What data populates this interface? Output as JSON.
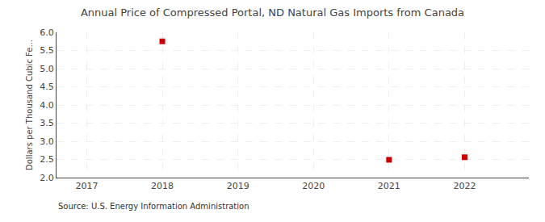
{
  "chart_data": {
    "type": "scatter",
    "title": "Annual Price of Compressed Portal, ND Natural Gas Imports from Canada",
    "ylabel": "Dollars per Thousand Cubic Fe...",
    "source": "Source: U.S. Energy Information Administration",
    "x": [
      2018,
      2021,
      2022
    ],
    "values": [
      5.75,
      2.49,
      2.56
    ],
    "color": "#cc0000",
    "marker": "square",
    "xlim": [
      2016.6,
      2022.85
    ],
    "xticks": [
      2017,
      2018,
      2019,
      2020,
      2021,
      2022
    ],
    "ylim": [
      2.0,
      6.0
    ],
    "yticks": [
      {
        "value": 2.0,
        "label": "2.0"
      },
      2.5,
      {
        "value": 3.0,
        "label": "3.0"
      },
      3.5,
      {
        "value": 4.0,
        "label": "4.0"
      },
      4.5,
      {
        "value": 5.0,
        "label": "5.0"
      },
      5.5,
      {
        "value": 6.0,
        "label": "6.0"
      }
    ],
    "grid": true
  }
}
